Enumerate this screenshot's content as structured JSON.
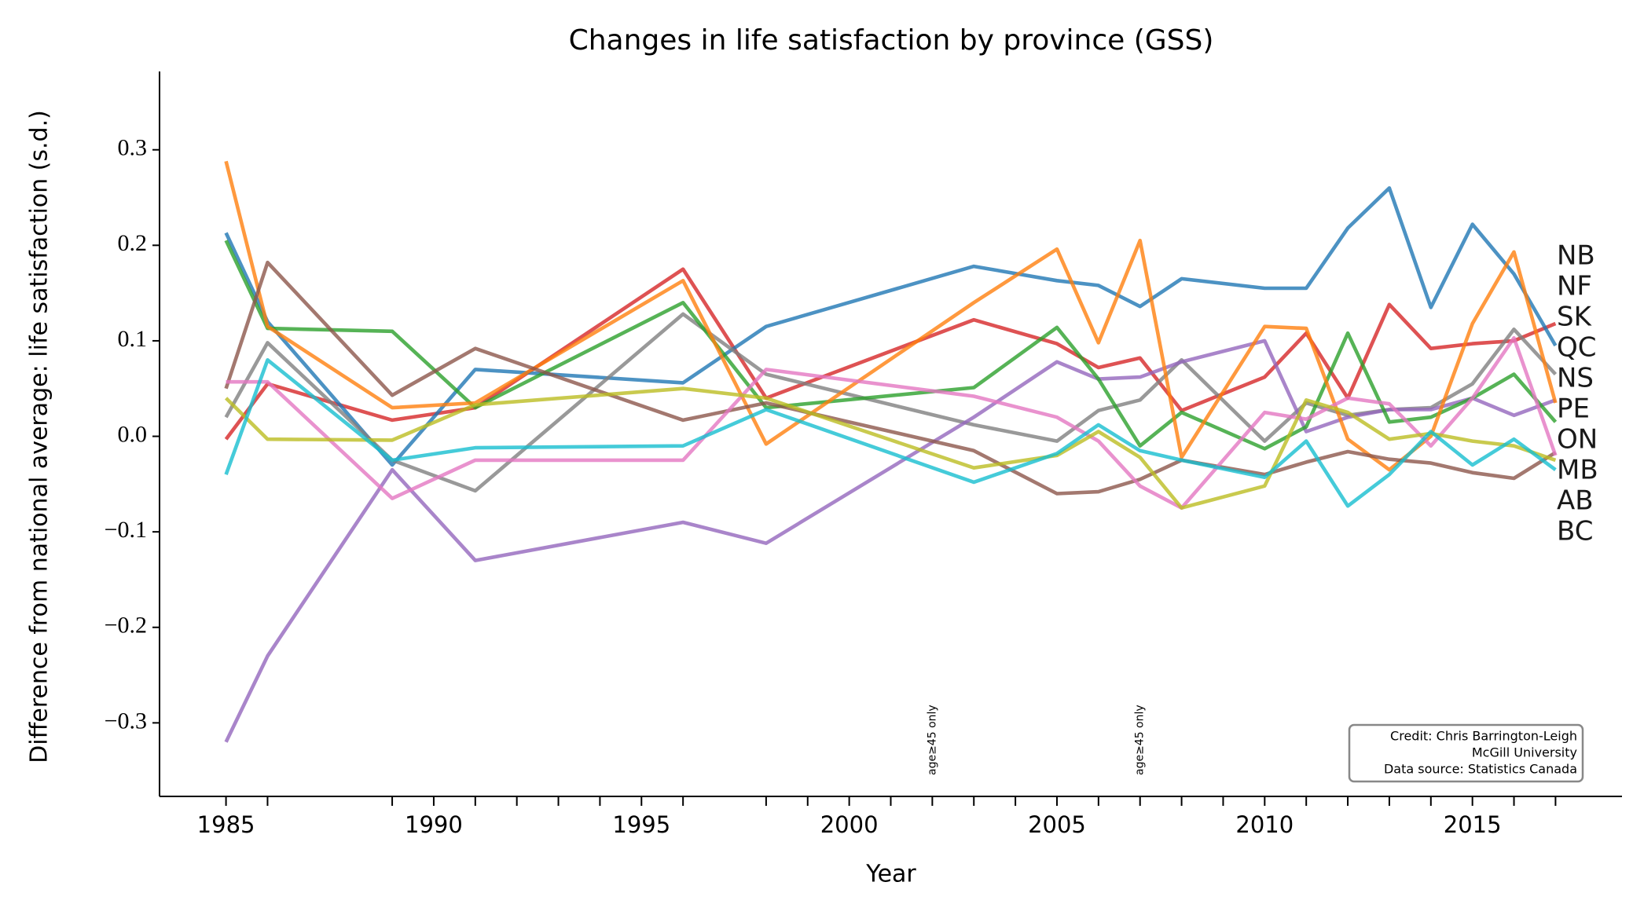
{
  "chart_data": {
    "type": "line",
    "title": "Changes in life satisfaction by province (GSS)",
    "xlabel": "Year",
    "ylabel": "Difference from national average:  life satisfaction (s.d.)",
    "x": [
      1985,
      1986,
      1989,
      1991,
      1996,
      1998,
      2003,
      2005,
      2006,
      2007,
      2008,
      2010,
      2011,
      2012,
      2013,
      2014,
      2015,
      2016,
      2017
    ],
    "series": [
      {
        "name": "NB",
        "color": "#d62728",
        "values": [
          -0.003,
          0.055,
          0.017,
          0.03,
          0.175,
          0.04,
          0.122,
          0.097,
          0.072,
          0.082,
          0.027,
          0.062,
          0.108,
          0.04,
          0.138,
          0.092,
          0.097,
          0.1,
          0.118
        ]
      },
      {
        "name": "NF",
        "color": "#1f77b4",
        "values": [
          0.213,
          0.12,
          -0.03,
          0.07,
          0.056,
          0.115,
          0.178,
          0.163,
          0.158,
          0.136,
          0.165,
          0.155,
          0.155,
          0.218,
          0.26,
          0.135,
          0.222,
          0.17,
          0.095
        ]
      },
      {
        "name": "SK",
        "color": "#7f7f7f",
        "values": [
          0.02,
          0.098,
          -0.025,
          -0.057,
          0.128,
          0.065,
          0.012,
          -0.005,
          0.027,
          0.038,
          0.08,
          -0.005,
          0.035,
          0.022,
          0.028,
          0.03,
          0.055,
          0.112,
          0.065
        ]
      },
      {
        "name": "QC",
        "color": "#9467bd",
        "values": [
          -0.32,
          -0.23,
          -0.035,
          -0.13,
          -0.09,
          -0.112,
          0.02,
          0.078,
          0.06,
          0.062,
          0.078,
          0.1,
          0.005,
          0.02,
          0.028,
          0.028,
          0.04,
          0.022,
          0.038
        ]
      },
      {
        "name": "NS",
        "color": "#2ca02c",
        "values": [
          0.205,
          0.113,
          0.11,
          0.03,
          0.14,
          0.03,
          0.051,
          0.114,
          0.06,
          -0.01,
          0.025,
          -0.013,
          0.01,
          0.108,
          0.015,
          0.02,
          0.04,
          0.065,
          0.015
        ]
      },
      {
        "name": "PE",
        "color": "#ff7f0e",
        "values": [
          0.288,
          0.115,
          0.03,
          0.035,
          0.163,
          -0.008,
          0.14,
          0.196,
          0.098,
          0.205,
          -0.022,
          0.115,
          0.113,
          -0.003,
          -0.035,
          0.0,
          0.118,
          0.193,
          0.035
        ]
      },
      {
        "name": "ON",
        "color": "#8c564b",
        "values": [
          0.05,
          0.182,
          0.043,
          0.092,
          0.017,
          0.035,
          -0.015,
          -0.06,
          -0.058,
          -0.045,
          -0.025,
          -0.04,
          -0.027,
          -0.016,
          -0.024,
          -0.028,
          -0.038,
          -0.044,
          -0.017
        ]
      },
      {
        "name": "MB",
        "color": "#e377c2",
        "values": [
          0.057,
          0.057,
          -0.065,
          -0.025,
          -0.025,
          0.07,
          0.042,
          0.02,
          -0.005,
          -0.052,
          -0.075,
          0.025,
          0.018,
          0.04,
          0.034,
          -0.01,
          0.04,
          0.103,
          -0.02
        ]
      },
      {
        "name": "AB",
        "color": "#bcbd22",
        "values": [
          0.04,
          -0.003,
          -0.004,
          0.033,
          0.05,
          0.04,
          -0.033,
          -0.02,
          0.005,
          -0.022,
          -0.075,
          -0.052,
          0.038,
          0.025,
          -0.003,
          0.003,
          -0.005,
          -0.01,
          -0.025
        ]
      },
      {
        "name": "BC",
        "color": "#17becf",
        "values": [
          -0.04,
          0.08,
          -0.025,
          -0.012,
          -0.01,
          0.028,
          -0.048,
          -0.018,
          0.012,
          -0.015,
          -0.025,
          -0.043,
          -0.005,
          -0.073,
          -0.04,
          0.005,
          -0.03,
          -0.003,
          -0.035
        ]
      }
    ],
    "xlim": [
      1983.4,
      2018.6
    ],
    "ylim": [
      -0.377,
      0.382
    ],
    "xticks": [
      1985,
      1990,
      1995,
      2000,
      2005,
      2010,
      2015
    ],
    "xticks_minor": [
      1986,
      1989,
      1991,
      1992,
      1993,
      1994,
      1996,
      1998,
      1999,
      2001,
      2002,
      2003,
      2004,
      2006,
      2007,
      2008,
      2009,
      2011,
      2012,
      2013,
      2014,
      2016,
      2017
    ],
    "yticks": [
      {
        "value": -0.3,
        "label": "−0.3"
      },
      {
        "value": -0.2,
        "label": "−0.2"
      },
      {
        "value": -0.1,
        "label": "−0.1"
      },
      {
        "value": 0,
        "label": "0.0"
      },
      0.1,
      0.2,
      0.3
    ],
    "annotations": [
      {
        "x": 2002,
        "text": "age≥45 only"
      },
      {
        "x": 2007,
        "text": "age≥45 only"
      }
    ],
    "credit": [
      "Credit: Chris Barrington-Leigh",
      "McGill University",
      "Data source: Statistics Canada"
    ]
  }
}
